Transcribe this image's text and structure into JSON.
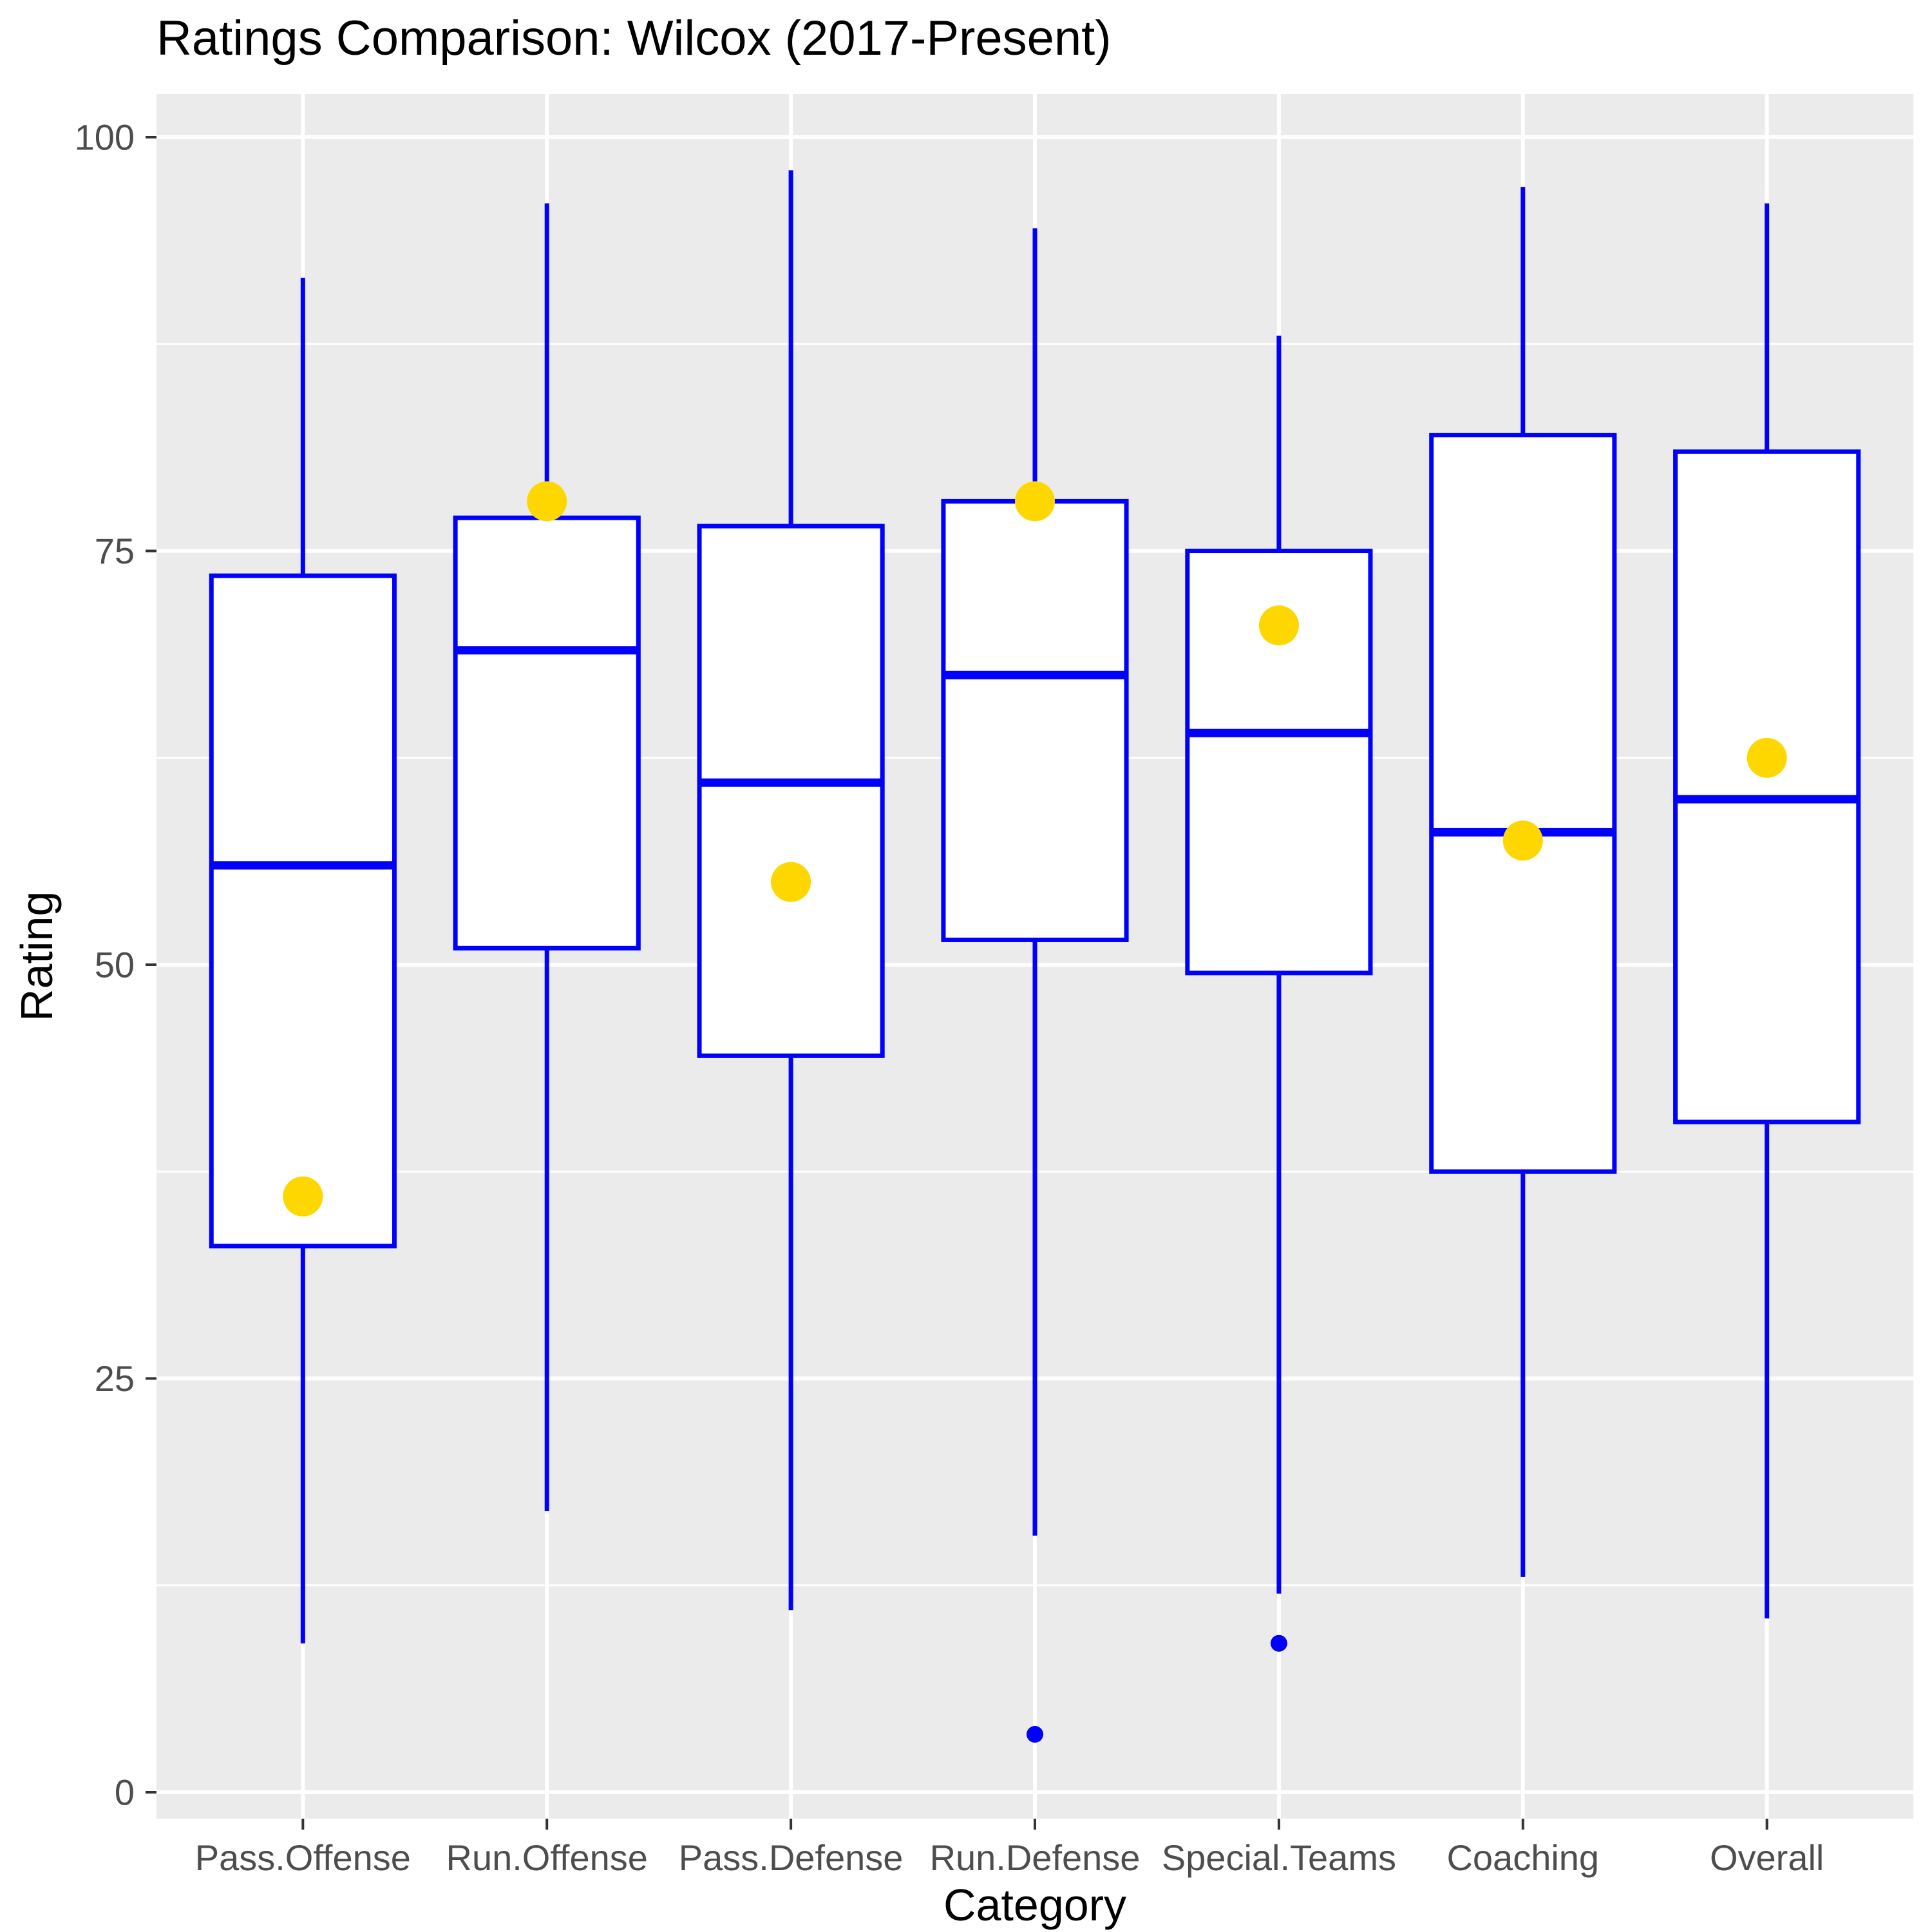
{
  "title": "Ratings Comparison: Wilcox (2017-Present)",
  "chart_data": {
    "type": "boxplot",
    "title": "Ratings Comparison: Wilcox (2017-Present)",
    "xlabel": "Category",
    "ylabel": "Rating",
    "ylim": [
      0,
      100
    ],
    "yticks": [
      0,
      25,
      50,
      75,
      100
    ],
    "grid": true,
    "legend_position": "none",
    "categories": [
      "Pass.Offense",
      "Run.Offense",
      "Pass.Defense",
      "Run.Defense",
      "Special.Teams",
      "Coaching",
      "Overall"
    ],
    "series": [
      {
        "category": "Pass.Offense",
        "whisker_low": 9,
        "q1": 33,
        "median": 56,
        "q3": 73.5,
        "whisker_high": 91.5,
        "current_point": 36,
        "outliers": []
      },
      {
        "category": "Run.Offense",
        "whisker_low": 17,
        "q1": 51,
        "median": 69,
        "q3": 77,
        "whisker_high": 96,
        "current_point": 78,
        "outliers": []
      },
      {
        "category": "Pass.Defense",
        "whisker_low": 11,
        "q1": 44.5,
        "median": 61,
        "q3": 76.5,
        "whisker_high": 98,
        "current_point": 55,
        "outliers": []
      },
      {
        "category": "Run.Defense",
        "whisker_low": 15.5,
        "q1": 51.5,
        "median": 67.5,
        "q3": 78,
        "whisker_high": 94.5,
        "current_point": 78,
        "outliers": [
          3.5
        ]
      },
      {
        "category": "Special.Teams",
        "whisker_low": 12,
        "q1": 49.5,
        "median": 64,
        "q3": 75,
        "whisker_high": 88,
        "current_point": 70.5,
        "outliers": [
          9
        ]
      },
      {
        "category": "Coaching",
        "whisker_low": 13,
        "q1": 37.5,
        "median": 58,
        "q3": 82,
        "whisker_high": 97,
        "current_point": 57.5,
        "outliers": []
      },
      {
        "category": "Overall",
        "whisker_low": 10.5,
        "q1": 40.5,
        "median": 60,
        "q3": 81,
        "whisker_high": 96,
        "current_point": 62.5,
        "outliers": []
      }
    ],
    "colors": {
      "box_stroke": "#0000FF",
      "box_fill": "#FFFFFF",
      "outlier_fill": "#0000FF",
      "point_fill": "#FFD700",
      "panel_background": "#EBEBEB",
      "gridline": "#FFFFFF",
      "tick_mark": "#333333",
      "tick_label": "#4D4D4D",
      "text": "#000000"
    }
  }
}
